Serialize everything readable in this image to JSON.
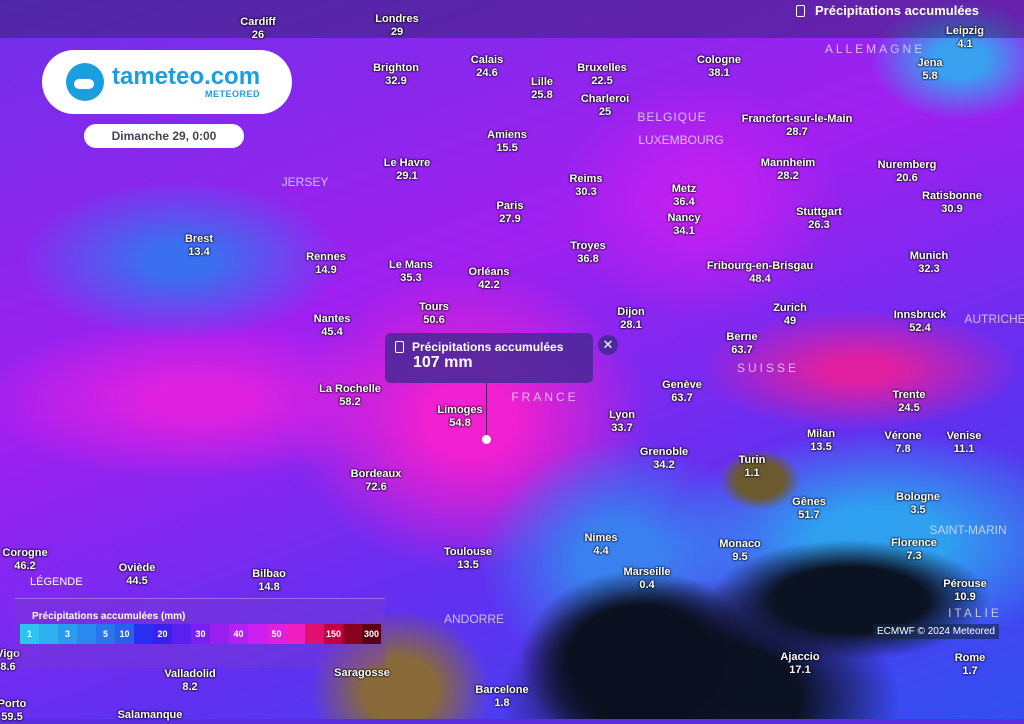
{
  "logo": {
    "name": "tameteo.com",
    "sub": "METEORED"
  },
  "date": "Dimanche 29, 0:00",
  "layer_title": "Précipitations accumulées",
  "popup": {
    "title": "Précipitations accumulées",
    "value": "107 mm",
    "close": "✕"
  },
  "legend": {
    "label": "LÉGENDE",
    "title": "Précipitations accumulées (mm)",
    "scale": [
      {
        "c": "#2ec4f0",
        "l": "1"
      },
      {
        "c": "#2cb0f0",
        "l": ""
      },
      {
        "c": "#2a9cf0",
        "l": "3"
      },
      {
        "c": "#2a88f0",
        "l": ""
      },
      {
        "c": "#2a74f0",
        "l": "5"
      },
      {
        "c": "#2a60f0",
        "l": "10"
      },
      {
        "c": "#2a30f0",
        "l": ""
      },
      {
        "c": "#3a20f0",
        "l": "20"
      },
      {
        "c": "#5a20f0",
        "l": ""
      },
      {
        "c": "#7a20f0",
        "l": "30"
      },
      {
        "c": "#9a20f0",
        "l": ""
      },
      {
        "c": "#b420f0",
        "l": "40"
      },
      {
        "c": "#cc20f0",
        "l": ""
      },
      {
        "c": "#e020e0",
        "l": "50"
      },
      {
        "c": "#f020c0",
        "l": ""
      },
      {
        "c": "#e01070",
        "l": ""
      },
      {
        "c": "#c00040",
        "l": "150"
      },
      {
        "c": "#8a0020",
        "l": ""
      },
      {
        "c": "#5a0010",
        "l": "300"
      }
    ]
  },
  "credit": "ECMWF © 2024 Meteored",
  "countries": [
    "ALLEMAGNE",
    "BELGIQUE",
    "LUXEMBOURG",
    "JERSEY",
    "FRANCE",
    "SUISSE",
    "AUTRICHE",
    "SAINT-MARIN",
    "ITALIE",
    "ANDORRE"
  ],
  "cities": [
    {
      "n": "Cardiff",
      "v": "26"
    },
    {
      "n": "Londres",
      "v": "29"
    },
    {
      "n": "Brighton",
      "v": "32.9"
    },
    {
      "n": "Calais",
      "v": "24.6"
    },
    {
      "n": "Lille",
      "v": "25.8"
    },
    {
      "n": "Bruxelles",
      "v": "22.5"
    },
    {
      "n": "Charleroi",
      "v": "25"
    },
    {
      "n": "Cologne",
      "v": "38.1"
    },
    {
      "n": "Jena",
      "v": "5.8"
    },
    {
      "n": "Leipzig",
      "v": "4.1"
    },
    {
      "n": "Amiens",
      "v": "15.5"
    },
    {
      "n": "Le Havre",
      "v": "29.1"
    },
    {
      "n": "Francfort-sur-le-Main",
      "v": "28.7"
    },
    {
      "n": "Mannheim",
      "v": "28.2"
    },
    {
      "n": "Nuremberg",
      "v": "20.6"
    },
    {
      "n": "Reims",
      "v": "30.3"
    },
    {
      "n": "Metz",
      "v": "36.4"
    },
    {
      "n": "Ratisbonne",
      "v": "30.9"
    },
    {
      "n": "Paris",
      "v": "27.9"
    },
    {
      "n": "Stuttgart",
      "v": "26.3"
    },
    {
      "n": "Nancy",
      "v": "34.1"
    },
    {
      "n": "Brest",
      "v": "13.4"
    },
    {
      "n": "Troyes",
      "v": "36.8"
    },
    {
      "n": "Rennes",
      "v": "14.9"
    },
    {
      "n": "Le Mans",
      "v": "35.3"
    },
    {
      "n": "Orléans",
      "v": "42.2"
    },
    {
      "n": "Fribourg-en-Brisgau",
      "v": "48.4"
    },
    {
      "n": "Munich",
      "v": "32.3"
    },
    {
      "n": "Zurich",
      "v": "49"
    },
    {
      "n": "Tours",
      "v": "50.6"
    },
    {
      "n": "Dijon",
      "v": "28.1"
    },
    {
      "n": "Nantes",
      "v": "45.4"
    },
    {
      "n": "Innsbruck",
      "v": "52.4"
    },
    {
      "n": "Berne",
      "v": "63.7"
    },
    {
      "n": "Genève",
      "v": "63.7"
    },
    {
      "n": "La Rochelle",
      "v": "58.2"
    },
    {
      "n": "Trente",
      "v": "24.5"
    },
    {
      "n": "Limoges",
      "v": "54.8"
    },
    {
      "n": "Lyon",
      "v": "33.7"
    },
    {
      "n": "Milan",
      "v": "13.5"
    },
    {
      "n": "Vérone",
      "v": "7.8"
    },
    {
      "n": "Venise",
      "v": "11.1"
    },
    {
      "n": "Grenoble",
      "v": "34.2"
    },
    {
      "n": "Turin",
      "v": "1.1"
    },
    {
      "n": "Bordeaux",
      "v": "72.6"
    },
    {
      "n": "Gênes",
      "v": "51.7"
    },
    {
      "n": "Bologne",
      "v": "3.5"
    },
    {
      "n": "Nimes",
      "v": "4.4"
    },
    {
      "n": "Monaco",
      "v": "9.5"
    },
    {
      "n": "Florence",
      "v": "7.3"
    },
    {
      "n": "Toulouse",
      "v": "13.5"
    },
    {
      "n": "Marseille",
      "v": "0.4"
    },
    {
      "n": "Corogne",
      "v": "46.2"
    },
    {
      "n": "Oviède",
      "v": "44.5"
    },
    {
      "n": "Bilbao",
      "v": "14.8"
    },
    {
      "n": "Pérouse",
      "v": "10.9"
    },
    {
      "n": "Ajaccio",
      "v": "17.1"
    },
    {
      "n": "Rome",
      "v": "1.7"
    },
    {
      "n": "Valladolid",
      "v": "8.2"
    },
    {
      "n": "Barcelone",
      "v": "1.8"
    },
    {
      "n": "Porto",
      "v": "59.5"
    },
    {
      "n": "Salamanque",
      "v": ""
    },
    {
      "n": "Vigo",
      "v": "8.6"
    },
    {
      "n": "Saragosse",
      "v": ""
    }
  ]
}
